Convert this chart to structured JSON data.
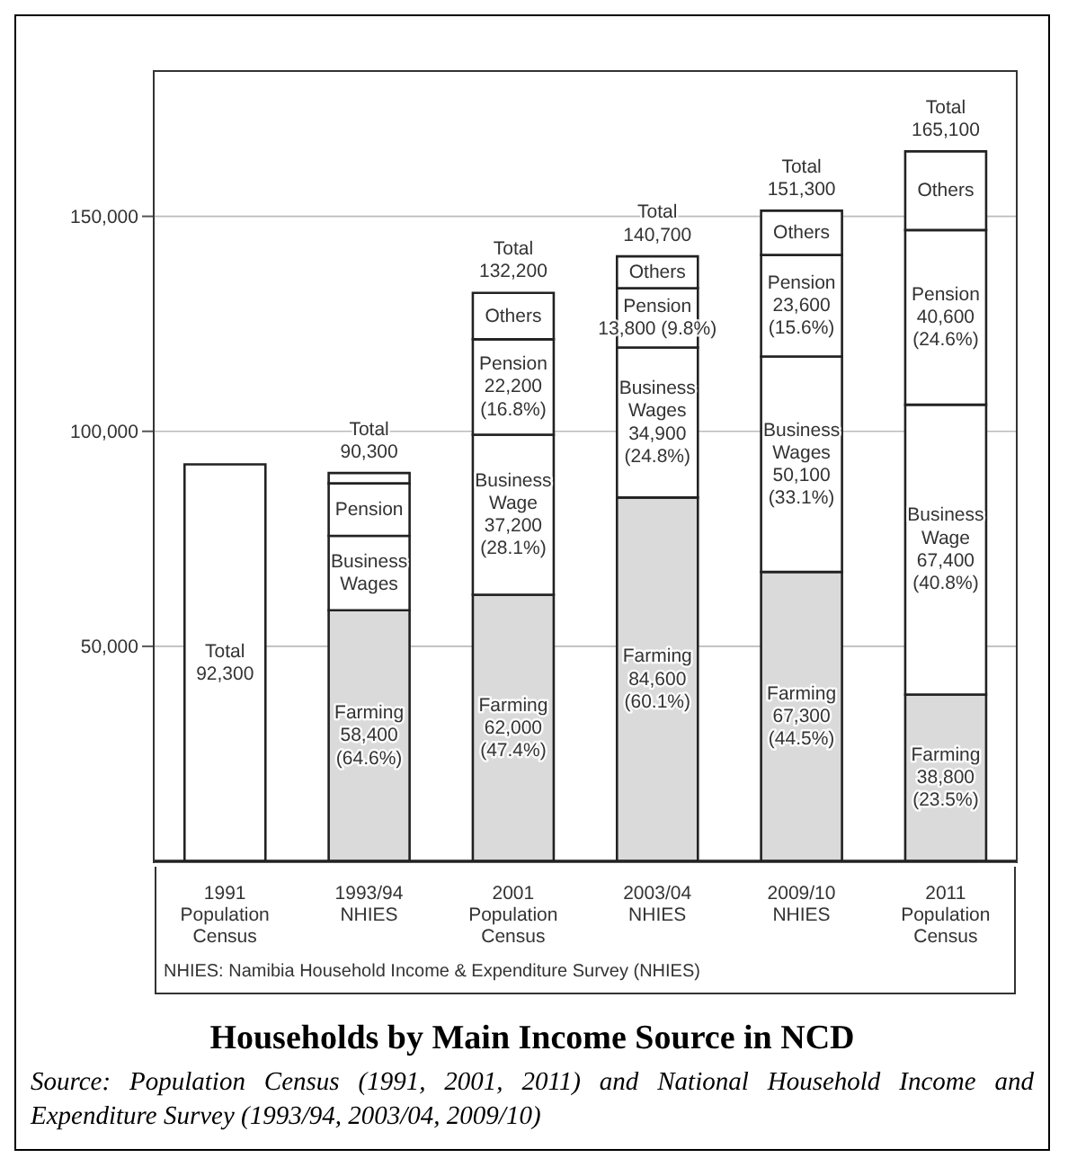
{
  "chart_data": {
    "type": "bar",
    "title": "Households by Main Income Source in NCD",
    "categories": [
      "1991\nPopulation\nCensus",
      "1993/94\nNHIES",
      "2001\nPopulation\nCensus",
      "2003/04\nNHIES",
      "2009/10\nNHIES",
      "2011\nPopulation\nCensus"
    ],
    "stacked": true,
    "series": [
      {
        "color": "#ffffff",
        "values": [
          92300,
          null,
          null,
          null,
          null,
          null
        ],
        "value_labels": [
          "Total\n92,300",
          null,
          null,
          null,
          null,
          null
        ]
      },
      {
        "color": "#dadada",
        "values": [
          null,
          58400,
          62000,
          84600,
          67300,
          38800
        ],
        "value_labels": [
          null,
          "Farming\n58,400\n(64.6%)",
          "Farming\n62,000\n(47.4%)",
          "Farming\n84,600\n(60.1%)",
          "Farming\n67,300\n(44.5%)",
          "Farming\n38,800\n(23.5%)"
        ]
      },
      {
        "color": "#ffffff",
        "values": [
          null,
          17300,
          37200,
          34900,
          50100,
          67400
        ],
        "value_labels": [
          null,
          "Business\nWages",
          "Business\nWage\n37,200\n(28.1%)",
          "Business\nWages\n34,900\n(24.8%)",
          "Business\nWages\n50,100\n(33.1%)",
          "Business\nWage\n67,400\n(40.8%)"
        ]
      },
      {
        "color": "#ffffff",
        "values": [
          null,
          12200,
          22200,
          13800,
          23600,
          40600
        ],
        "value_labels": [
          null,
          "Pension",
          "Pension\n22,200\n(16.8%)",
          "Pension\n13,800 (9.8%)",
          "Pension\n23,600\n(15.6%)",
          "Pension\n40,600\n(24.6%)"
        ]
      },
      {
        "color": "#ffffff",
        "values": [
          null,
          2400,
          10800,
          7400,
          10300,
          18300
        ],
        "value_labels": [
          null,
          null,
          "Others",
          "Others",
          "Others",
          "Others"
        ]
      }
    ],
    "totals": [
      null,
      "Total\n90,300",
      "Total\n132,200",
      "Total\n140,700",
      "Total\n151,300",
      "Total\n165,100"
    ],
    "ylim": [
      0,
      184000
    ],
    "yticks": [
      {
        "value": 50000,
        "label": "50,000"
      },
      {
        "value": 100000,
        "label": "100,000"
      },
      {
        "value": 150000,
        "label": "150,000"
      }
    ],
    "grid": "y",
    "annotations": [
      "NHIES: Namibia Household Income & Expenditure Survey (NHIES)",
      "Source: Population Census (1991, 2001, 2011) and National Household Income and Expenditure Survey (1993/94, 2003/04, 2009/10)"
    ]
  }
}
